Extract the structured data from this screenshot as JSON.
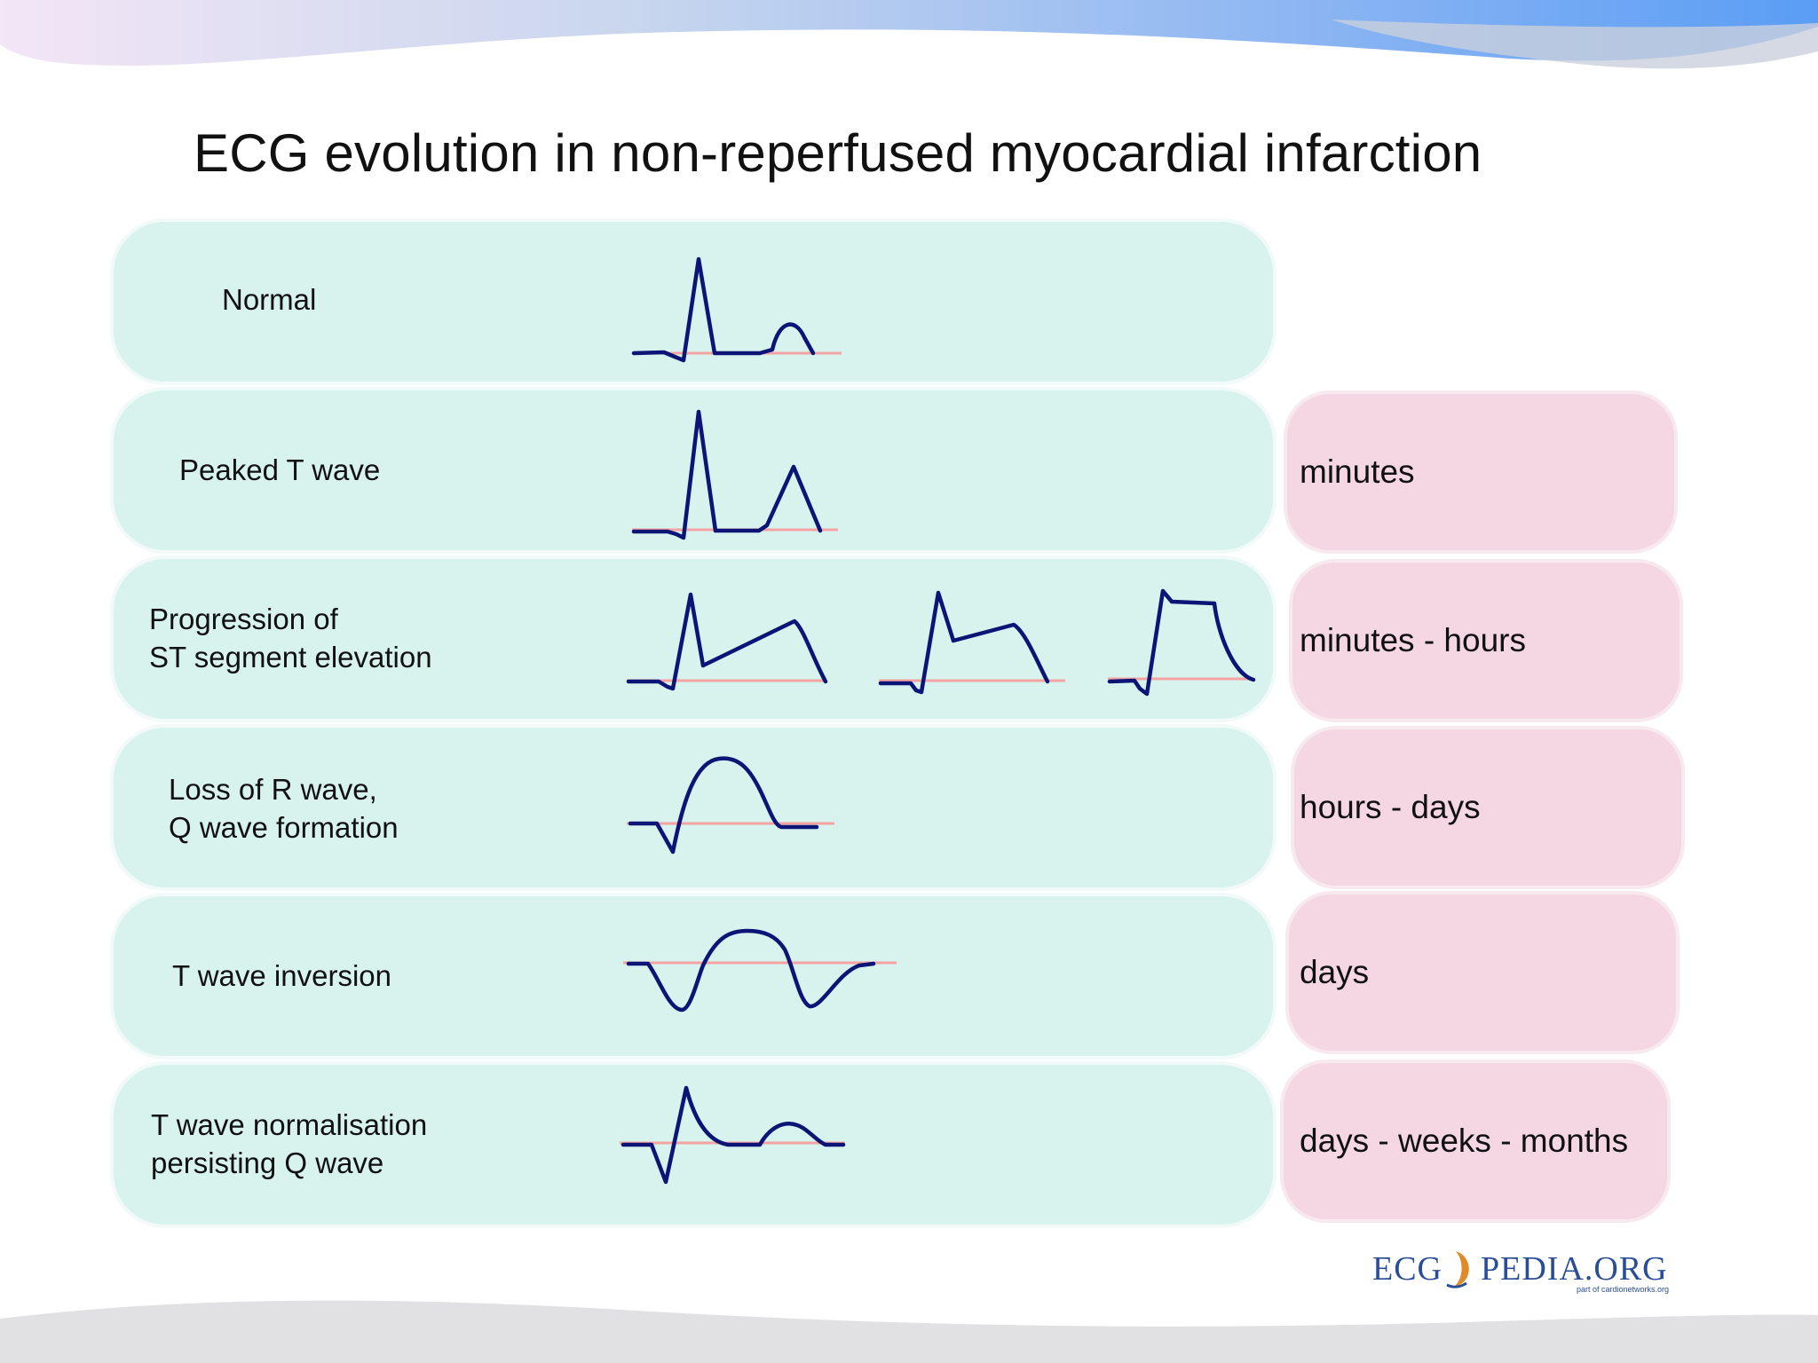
{
  "title": "ECG evolution in non-reperfused myocardial infarction",
  "stages": [
    {
      "id": "normal",
      "label_lines": [
        "Normal"
      ],
      "time": ""
    },
    {
      "id": "peaked-t",
      "label_lines": [
        "Peaked T wave"
      ],
      "time": "minutes"
    },
    {
      "id": "st-elevation",
      "label_lines": [
        "Progression of",
        "ST segment elevation"
      ],
      "time": "minutes - hours"
    },
    {
      "id": "q-wave",
      "label_lines": [
        "Loss of R wave,",
        "Q wave formation"
      ],
      "time": "hours - days"
    },
    {
      "id": "t-inversion",
      "label_lines": [
        "T wave inversion"
      ],
      "time": "days"
    },
    {
      "id": "t-normalisation",
      "label_lines": [
        "T wave normalisation",
        "persisting Q wave"
      ],
      "time": "days - weeks - months"
    }
  ],
  "logo": {
    "left": "ECG",
    "right": "PEDIA.ORG",
    "tagline": "part of cardionetworks.org"
  },
  "colors": {
    "stage_box": "#d8f2ee",
    "time_box": "#f4d7e2",
    "trace": "#0c1475",
    "baseline": "#f4a3a3",
    "logo": "#2a4e96"
  }
}
